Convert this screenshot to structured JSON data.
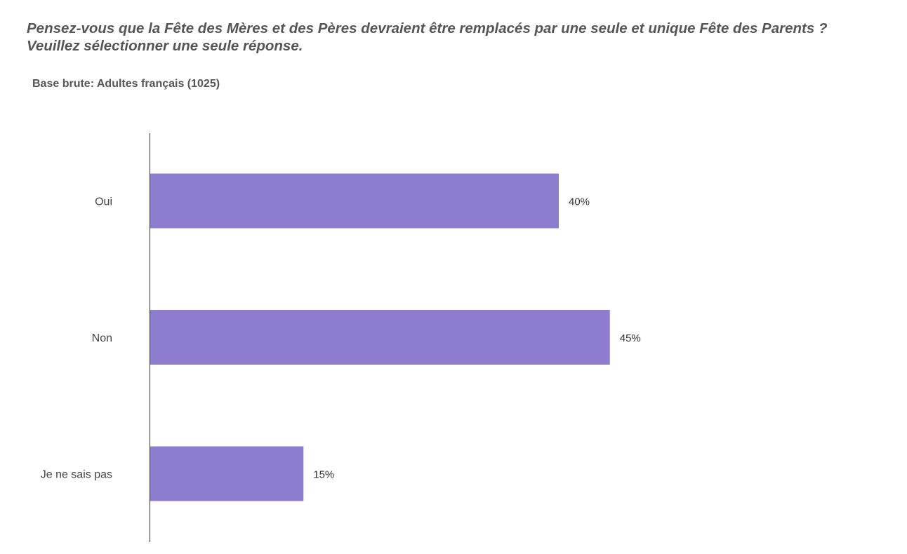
{
  "header": {
    "question_line1": "Pensez-vous que la Fête des Mères et des Pères devraient être remplacés par une seule et unique Fête des Parents ?",
    "question_line2": "Veuillez sélectionner une seule réponse.",
    "base": "Base brute: Adultes français (1025)"
  },
  "chart_data": {
    "type": "bar",
    "orientation": "horizontal",
    "categories": [
      "Oui",
      "Non",
      "Je ne sais pas"
    ],
    "values": [
      40,
      45,
      15
    ],
    "value_labels": [
      "40%",
      "45%",
      "15%"
    ],
    "unit": "%",
    "color": "#8e7dcc",
    "xlim": [
      0,
      100
    ],
    "grid": false,
    "legend": "none"
  }
}
